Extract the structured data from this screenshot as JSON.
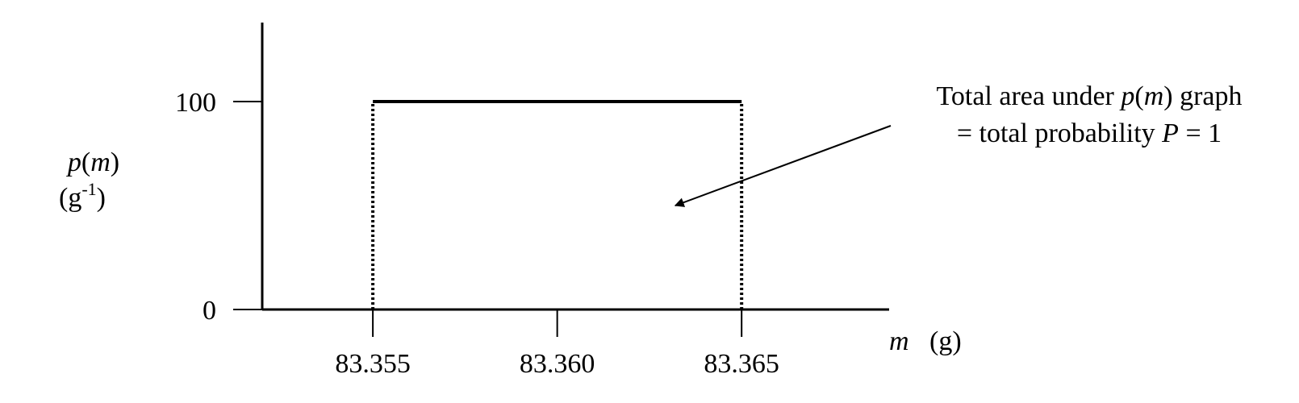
{
  "chart_data": {
    "type": "line",
    "title": "",
    "xlabel": "m",
    "xunit": "(g)",
    "ylabel_line1": "p(m)",
    "ylabel_line2": "(g-1)",
    "x_ticks": [
      {
        "value": 83.355,
        "label": "83.355"
      },
      {
        "value": 83.36,
        "label": "83.360"
      },
      {
        "value": 83.365,
        "label": "83.365"
      }
    ],
    "y_ticks": [
      {
        "value": 0,
        "label": "0"
      },
      {
        "value": 100,
        "label": "100"
      }
    ],
    "xlim": [
      83.352,
      83.369
    ],
    "ylim": [
      0,
      138
    ],
    "series": [
      {
        "x": [
          83.355,
          83.365
        ],
        "y": [
          100,
          100
        ]
      }
    ],
    "boundaries": [
      {
        "x": 83.355,
        "y_from": 0,
        "y_to": 100,
        "style": "dotted"
      },
      {
        "x": 83.365,
        "y_from": 0,
        "y_to": 100,
        "style": "dotted"
      }
    ],
    "annotation": {
      "line1": "Total area under p(m) graph",
      "line2": "= total probability P = 1",
      "arrow_to": {
        "x": 83.3632,
        "y": 50
      }
    },
    "grid": false,
    "legend": "none"
  }
}
